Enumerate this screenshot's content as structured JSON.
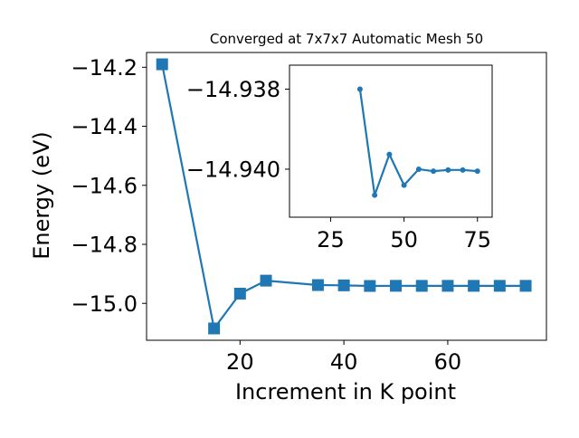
{
  "chart_data": [
    {
      "type": "line",
      "title": "Converged at 7x7x7 Automatic Mesh 50",
      "xlabel": "Increment in K point",
      "ylabel": "Energy (eV)",
      "xlim": [
        2,
        79
      ],
      "ylim": [
        -15.125,
        -14.15
      ],
      "x_ticks": [
        20,
        40,
        60
      ],
      "x_tick_labels": [
        "20",
        "40",
        "60"
      ],
      "y_ticks": [
        -15.0,
        -14.8,
        -14.6,
        -14.4,
        -14.2
      ],
      "y_tick_labels": [
        "−15.0",
        "−14.8",
        "−14.6",
        "−14.4",
        "−14.2"
      ],
      "grid": false,
      "marker": "square",
      "color": "#1f77b4",
      "series": [
        {
          "x": [
            5,
            15,
            20,
            25,
            35,
            40,
            45,
            50,
            55,
            60,
            65,
            70,
            75
          ],
          "y": [
            -14.19,
            -15.085,
            -14.967,
            -14.923,
            -14.938,
            -14.939,
            -14.941,
            -14.9405,
            -14.9407,
            -14.9406,
            -14.9406,
            -14.9406,
            -14.9406
          ]
        }
      ]
    },
    {
      "type": "line",
      "title": "",
      "xlabel": "",
      "ylabel": "",
      "xlim": [
        11,
        80
      ],
      "ylim": [
        -14.9412,
        -14.9374
      ],
      "x_ticks": [
        25,
        50,
        75
      ],
      "x_tick_labels": [
        "25",
        "50",
        "75"
      ],
      "y_ticks": [
        -14.94,
        -14.938
      ],
      "y_tick_labels": [
        "−14.940",
        "−14.938"
      ],
      "grid": false,
      "marker": "circle",
      "color": "#1f77b4",
      "series": [
        {
          "x": [
            35,
            40,
            45,
            50,
            55,
            60,
            65,
            70,
            75
          ],
          "y": [
            -14.938,
            -14.94065,
            -14.93963,
            -14.9404,
            -14.94,
            -14.94005,
            -14.94002,
            -14.94002,
            -14.94005
          ]
        }
      ]
    }
  ]
}
